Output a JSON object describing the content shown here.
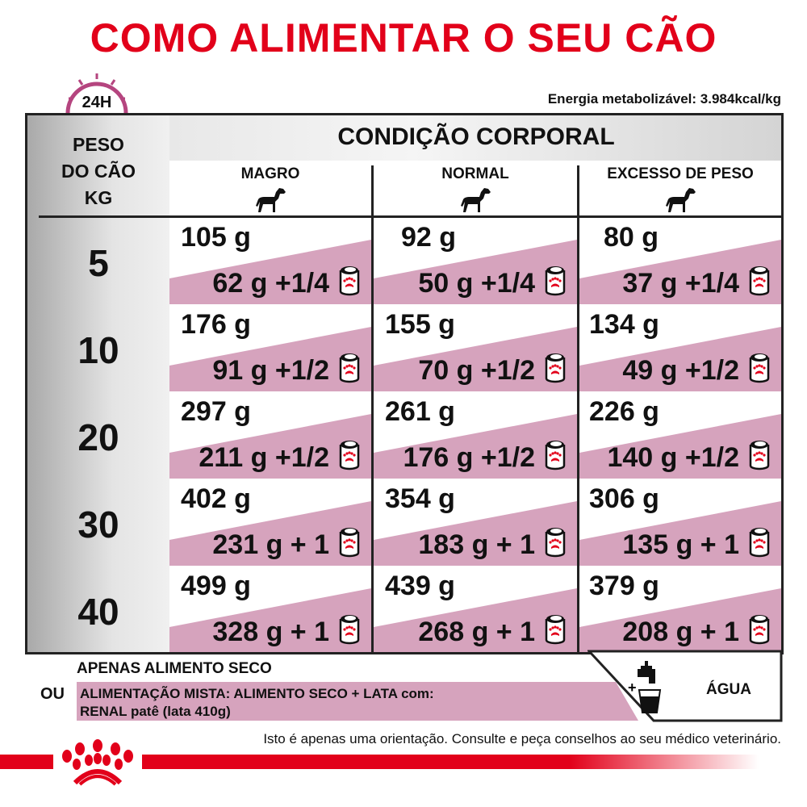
{
  "title": "COMO ALIMENTAR O SEU CÃO",
  "clock_label": "24H",
  "energy": "Energia metabolizável: 3.984kcal/kg",
  "table": {
    "weight_header": [
      "PESO",
      "DO CÃO",
      "KG"
    ],
    "condition_header": "CONDIÇÃO CORPORAL",
    "columns": [
      "MAGRO",
      "NORMAL",
      "EXCESSO DE PESO"
    ],
    "rows": [
      {
        "weight": "5",
        "cells": [
          {
            "dry": "105 g",
            "mixed": "62 g +1/4"
          },
          {
            "dry": "92 g",
            "mixed": "50 g +1/4"
          },
          {
            "dry": "80 g",
            "mixed": "37 g +1/4"
          }
        ]
      },
      {
        "weight": "10",
        "cells": [
          {
            "dry": "176 g",
            "mixed": "91 g +1/2"
          },
          {
            "dry": "155 g",
            "mixed": "70 g +1/2"
          },
          {
            "dry": "134 g",
            "mixed": "49 g +1/2"
          }
        ]
      },
      {
        "weight": "20",
        "cells": [
          {
            "dry": "297 g",
            "mixed": "211 g +1/2"
          },
          {
            "dry": "261 g",
            "mixed": "176 g +1/2"
          },
          {
            "dry": "226 g",
            "mixed": "140 g +1/2"
          }
        ]
      },
      {
        "weight": "30",
        "cells": [
          {
            "dry": "402 g",
            "mixed": "231 g + 1"
          },
          {
            "dry": "354 g",
            "mixed": "183 g + 1"
          },
          {
            "dry": "306 g",
            "mixed": "135 g + 1"
          }
        ]
      },
      {
        "weight": "40",
        "cells": [
          {
            "dry": "499 g",
            "mixed": "328 g + 1"
          },
          {
            "dry": "439 g",
            "mixed": "268 g + 1"
          },
          {
            "dry": "379 g",
            "mixed": "208 g + 1"
          }
        ]
      }
    ]
  },
  "legend": {
    "dry_only": "APENAS ALIMENTO SECO",
    "or": "OU",
    "mixed_line1": "ALIMENTAÇÃO MISTA: ALIMENTO SECO + LATA com:",
    "mixed_line2": "RENAL patê (lata 410g)",
    "water_plus": "+",
    "water": "ÁGUA"
  },
  "footer": "Isto é apenas uma orientação. Consulte e peça conselhos ao seu médico veterinário.",
  "colors": {
    "brand_red": "#e2001a",
    "pink": "#d6a3bd",
    "clock": "#b5457f"
  },
  "icons": {
    "clock": "clock-24h-icon",
    "dog": "dog-icon",
    "can": "wet-food-can-icon",
    "tap": "water-tap-icon",
    "logo": "royal-canin-crown-logo"
  }
}
